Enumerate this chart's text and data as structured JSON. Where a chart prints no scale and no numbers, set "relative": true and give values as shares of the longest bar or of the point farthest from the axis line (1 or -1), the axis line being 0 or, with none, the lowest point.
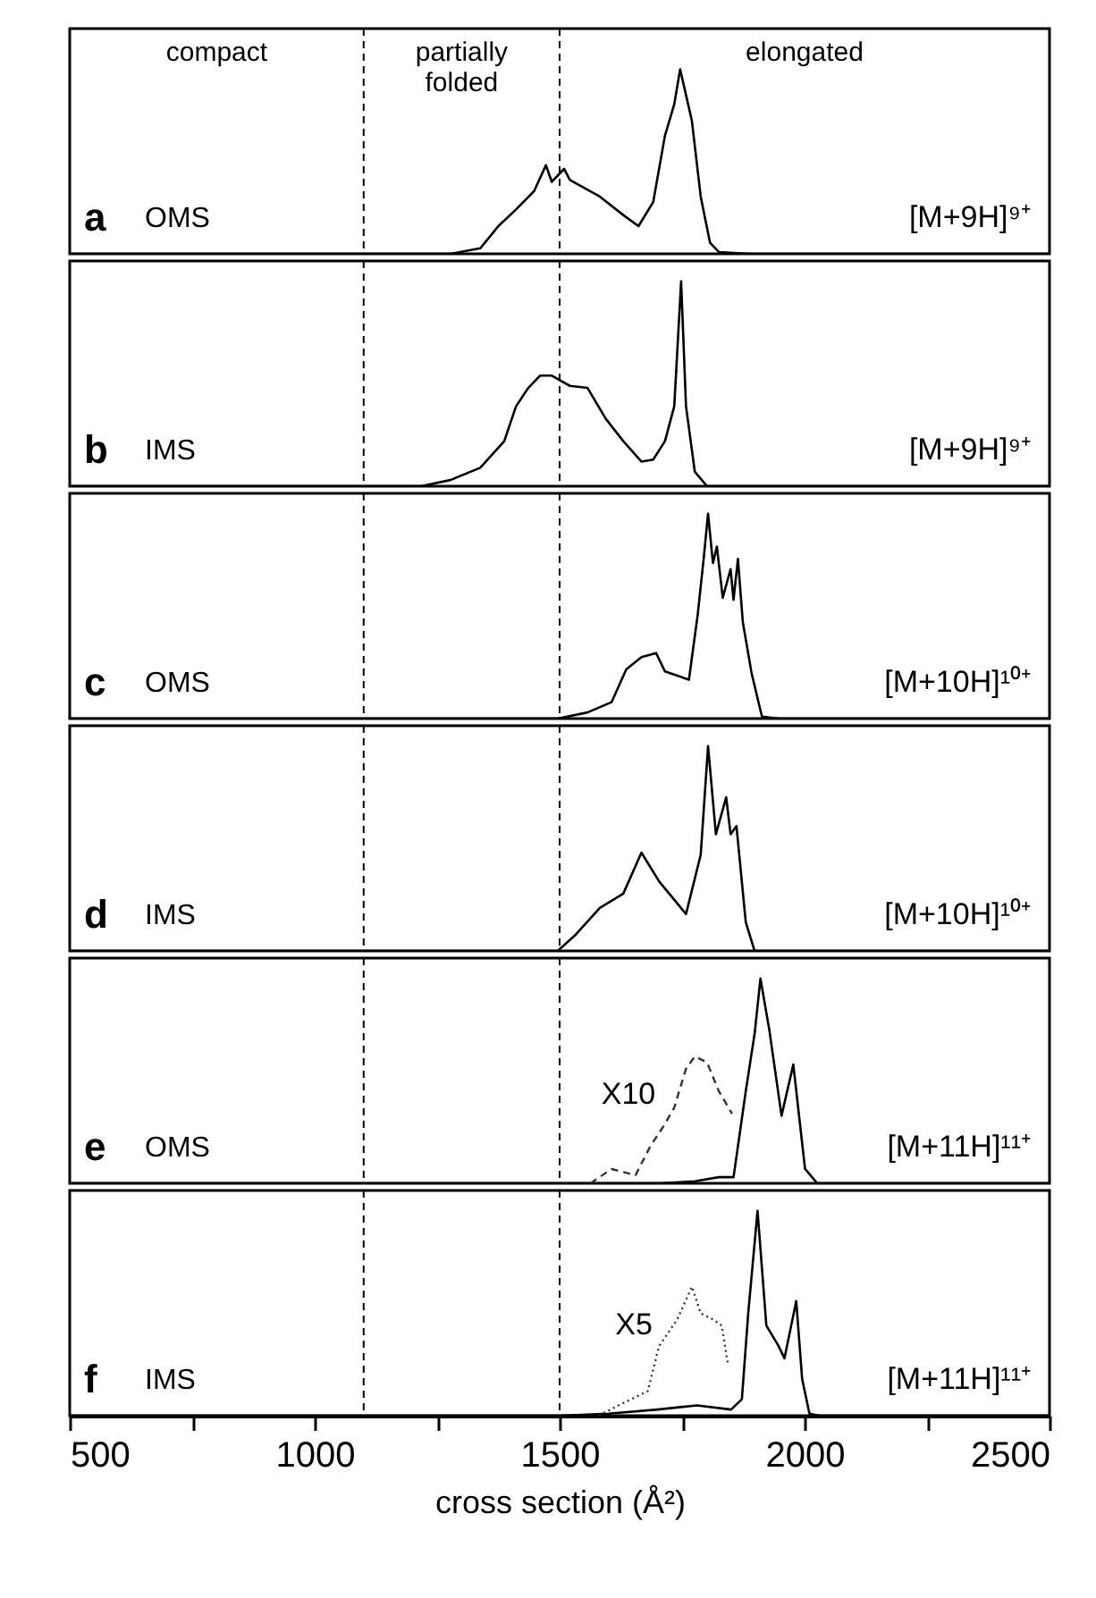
{
  "chart_data": [
    {
      "type": "line",
      "title": "a",
      "subtitle": "OMS",
      "relative": true,
      "tick_labels": false,
      "xlim": [
        500,
        2500
      ],
      "annotations": [
        "compact",
        "partially folded",
        "elongated",
        "[M+9H]⁹⁺"
      ],
      "ref_lines": [
        {
          "axis": "x",
          "value": 1100,
          "line_style": "dashed",
          "color": "#000000"
        },
        {
          "axis": "x",
          "value": 1500,
          "line_style": "dashed",
          "color": "#000000"
        }
      ],
      "series": [
        {
          "color": "#000000",
          "x": [
            500,
            1277,
            1338,
            1375,
            1411,
            1448,
            1472,
            1484,
            1509,
            1521,
            1582,
            1630,
            1661,
            1691,
            1715,
            1734,
            1746,
            1758,
            1770,
            1788,
            1807,
            1825,
            1886,
            2500
          ],
          "values": [
            0,
            0,
            0.03,
            0.15,
            0.24,
            0.34,
            0.48,
            0.39,
            0.46,
            0.4,
            0.31,
            0.21,
            0.15,
            0.28,
            0.64,
            0.81,
            1,
            0.86,
            0.72,
            0.31,
            0.06,
            0.01,
            0,
            0
          ]
        }
      ]
    },
    {
      "type": "line",
      "title": "b",
      "subtitle": "IMS",
      "relative": true,
      "tick_labels": false,
      "xlim": [
        500,
        2500
      ],
      "annotations": [
        "[M+9H]⁹⁺"
      ],
      "ref_lines": [
        {
          "axis": "x",
          "value": 1100,
          "line_style": "dashed",
          "color": "#000000"
        },
        {
          "axis": "x",
          "value": 1500,
          "line_style": "dashed",
          "color": "#000000"
        }
      ],
      "series": [
        {
          "color": "#000000",
          "x": [
            500,
            1217,
            1277,
            1338,
            1387,
            1411,
            1436,
            1460,
            1484,
            1521,
            1557,
            1594,
            1630,
            1667,
            1691,
            1715,
            1734,
            1748,
            1758,
            1776,
            1801,
            1886,
            2500
          ],
          "values": [
            0,
            0,
            0.03,
            0.09,
            0.22,
            0.39,
            0.48,
            0.54,
            0.54,
            0.49,
            0.48,
            0.33,
            0.22,
            0.12,
            0.13,
            0.22,
            0.39,
            1,
            0.39,
            0.07,
            0,
            0,
            0
          ]
        }
      ]
    },
    {
      "type": "line",
      "title": "c",
      "subtitle": "OMS",
      "relative": true,
      "tick_labels": false,
      "xlim": [
        500,
        2500
      ],
      "annotations": [
        "[M+10H]¹⁰⁺"
      ],
      "ref_lines": [
        {
          "axis": "x",
          "value": 1100,
          "line_style": "dashed",
          "color": "#000000"
        },
        {
          "axis": "x",
          "value": 1500,
          "line_style": "dashed",
          "color": "#000000"
        }
      ],
      "series": [
        {
          "color": "#000000",
          "x": [
            500,
            1496,
            1557,
            1606,
            1636,
            1667,
            1697,
            1715,
            1764,
            1782,
            1794,
            1803,
            1813,
            1821,
            1833,
            1849,
            1855,
            1864,
            1874,
            1892,
            1913,
            1947,
            2500
          ],
          "values": [
            0,
            0,
            0.03,
            0.08,
            0.24,
            0.3,
            0.32,
            0.23,
            0.19,
            0.51,
            0.78,
            1,
            0.76,
            0.84,
            0.59,
            0.73,
            0.58,
            0.78,
            0.47,
            0.22,
            0.01,
            0,
            0
          ]
        }
      ]
    },
    {
      "type": "line",
      "title": "d",
      "subtitle": "IMS",
      "relative": true,
      "tick_labels": false,
      "xlim": [
        500,
        2500
      ],
      "annotations": [
        "[M+10H]¹⁰⁺"
      ],
      "ref_lines": [
        {
          "axis": "x",
          "value": 1100,
          "line_style": "dashed",
          "color": "#000000"
        },
        {
          "axis": "x",
          "value": 1500,
          "line_style": "dashed",
          "color": "#000000"
        }
      ],
      "series": [
        {
          "color": "#000000",
          "x": [
            500,
            1496,
            1533,
            1582,
            1630,
            1667,
            1703,
            1758,
            1788,
            1803,
            1819,
            1840,
            1849,
            1861,
            1880,
            1898,
            1947,
            2500
          ],
          "values": [
            0,
            0,
            0.08,
            0.21,
            0.28,
            0.48,
            0.34,
            0.18,
            0.47,
            1,
            0.57,
            0.75,
            0.57,
            0.61,
            0.14,
            0,
            0,
            0
          ]
        }
      ]
    },
    {
      "type": "line",
      "title": "e",
      "subtitle": "OMS",
      "relative": true,
      "tick_labels": false,
      "xlim": [
        500,
        2500
      ],
      "annotations": [
        "X10",
        "[M+11H]¹¹⁺"
      ],
      "ref_lines": [
        {
          "axis": "x",
          "value": 1100,
          "line_style": "dashed",
          "color": "#000000"
        },
        {
          "axis": "x",
          "value": 1500,
          "line_style": "dashed",
          "color": "#000000"
        }
      ],
      "series": [
        {
          "color": "#000000",
          "x": [
            500,
            1703,
            1776,
            1825,
            1855,
            1880,
            1898,
            1910,
            1928,
            1953,
            1977,
            2001,
            2026,
            2500
          ],
          "values": [
            0,
            0,
            0.01,
            0.03,
            0.03,
            0.45,
            0.73,
            1,
            0.75,
            0.33,
            0.58,
            0.07,
            0,
            0
          ]
        },
        {
          "color": "#333333",
          "line_style": "dashed",
          "x": [
            1563,
            1606,
            1655,
            1685,
            1715,
            1734,
            1758,
            1776,
            1801,
            1825,
            1852
          ],
          "values": [
            0,
            0.07,
            0.04,
            0.18,
            0.29,
            0.37,
            0.56,
            0.62,
            0.59,
            0.45,
            0.34
          ]
        }
      ]
    },
    {
      "type": "line",
      "title": "f",
      "subtitle": "IMS",
      "relative": true,
      "tick_labels": "x",
      "xlabel": "cross section (Å²)",
      "xlim": [
        500,
        2500
      ],
      "xticks": [
        500,
        {
          "value": 750,
          "label": null
        },
        1000,
        {
          "value": 1250,
          "label": null
        },
        1500,
        {
          "value": 1750,
          "label": null
        },
        2000,
        {
          "value": 2250,
          "label": null
        },
        2500
      ],
      "annotations": [
        "X5",
        "[M+11H]¹¹⁺"
      ],
      "ref_lines": [
        {
          "axis": "x",
          "value": 1100,
          "line_style": "dashed",
          "color": "#000000"
        },
        {
          "axis": "x",
          "value": 1500,
          "line_style": "dashed",
          "color": "#000000"
        }
      ],
      "series": [
        {
          "color": "#000000",
          "x": [
            500,
            1500,
            1600,
            1700,
            1780,
            1850,
            1872,
            1885,
            1904,
            1922,
            1947,
            1959,
            1983,
            1995,
            2010,
            2030,
            2500
          ],
          "values": [
            0,
            0,
            0.01,
            0.03,
            0.05,
            0.03,
            0.08,
            0.5,
            1,
            0.44,
            0.34,
            0.28,
            0.56,
            0.18,
            0.01,
            0,
            0
          ]
        },
        {
          "color": "#333333",
          "line_style": "dotted",
          "x": [
            1580,
            1620,
            1680,
            1703,
            1740,
            1770,
            1788,
            1813,
            1831,
            1843
          ],
          "values": [
            0,
            0.05,
            0.12,
            0.34,
            0.47,
            0.63,
            0.5,
            0.47,
            0.44,
            0.26
          ]
        }
      ]
    }
  ]
}
